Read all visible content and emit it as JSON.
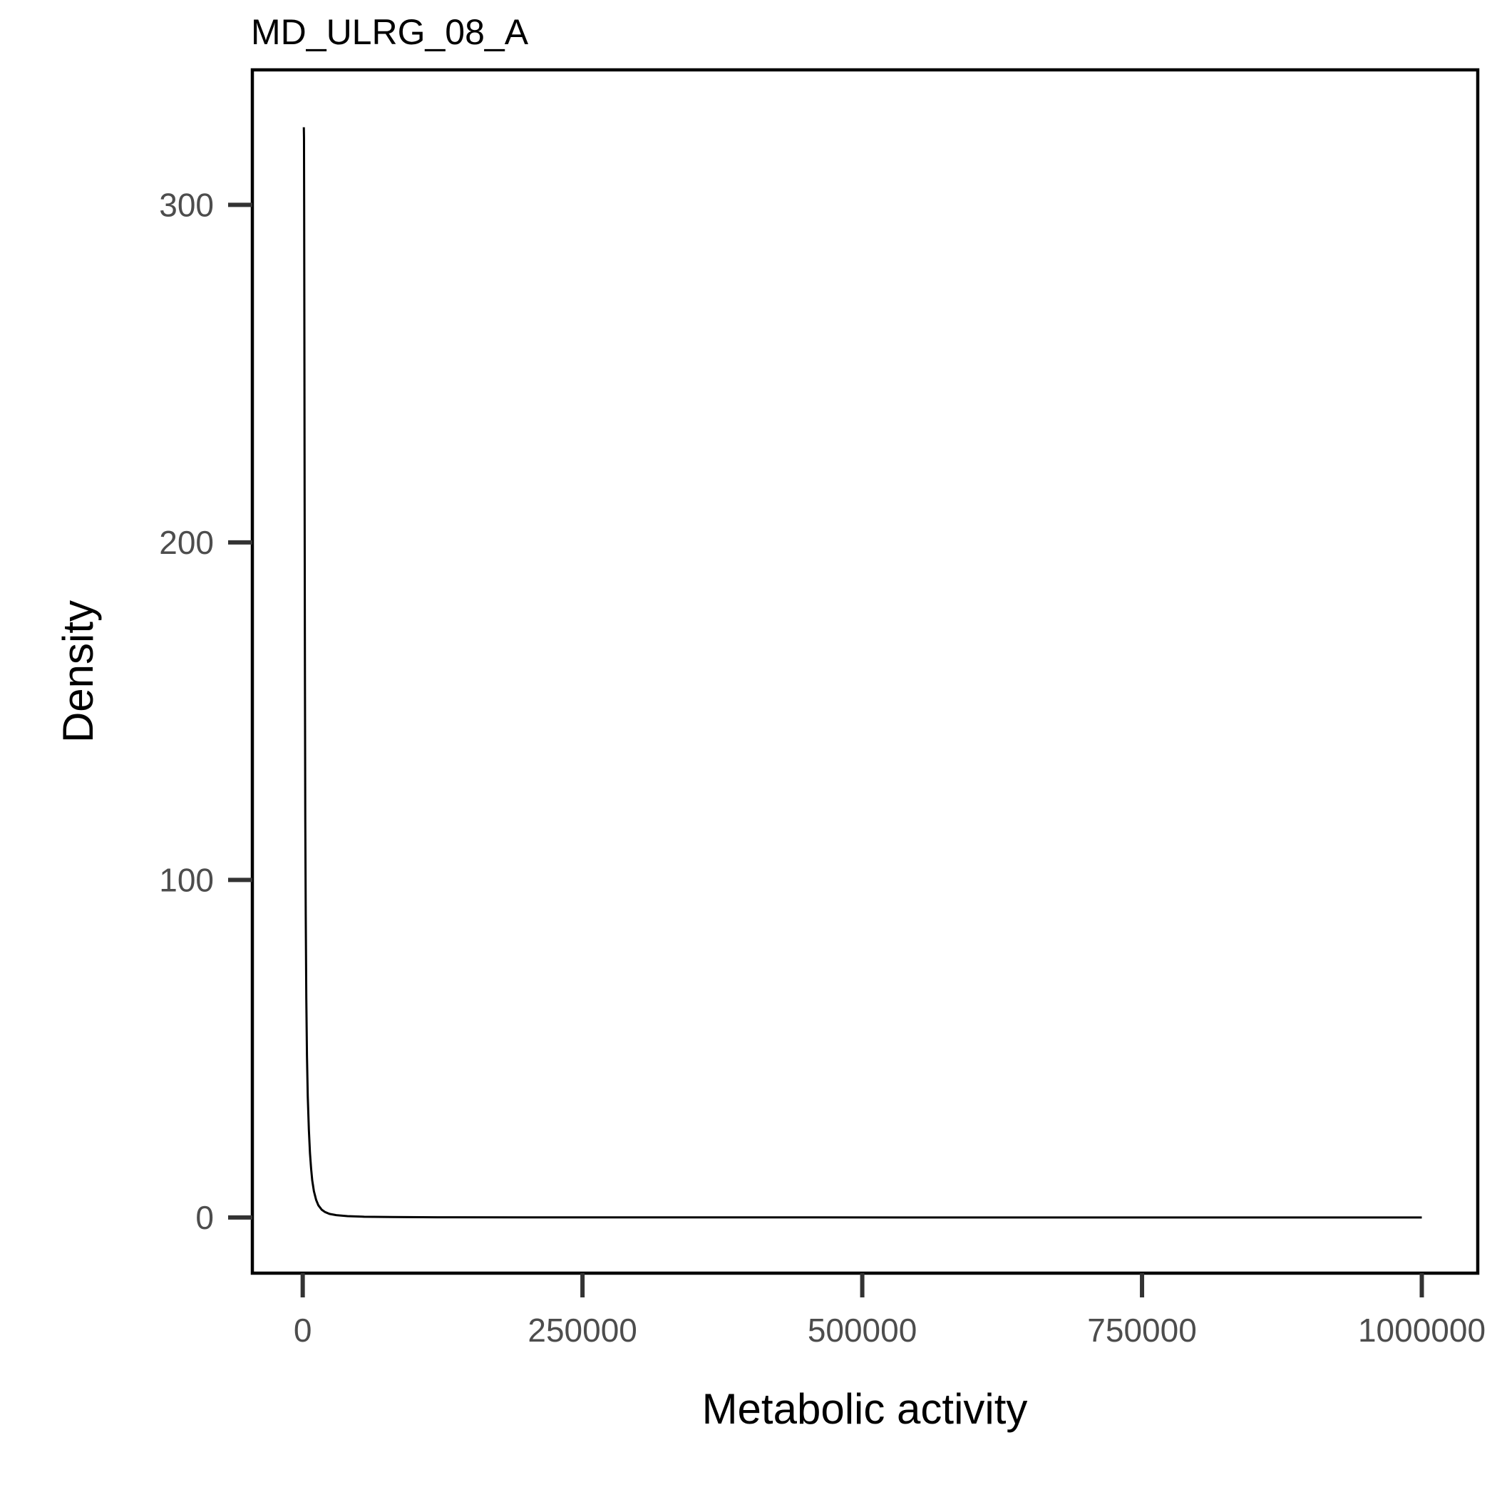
{
  "chart_data": {
    "type": "line",
    "title": "MD_ULRG_08_A",
    "xlabel": "Metabolic activity",
    "ylabel": "Density",
    "xlim": [
      -45000,
      1050000
    ],
    "ylim": [
      -16.5,
      340
    ],
    "x_ticks": [
      0,
      250000,
      500000,
      750000,
      1000000
    ],
    "x_tick_labels": [
      "0",
      "250000",
      "500000",
      "750000",
      "1000000"
    ],
    "y_ticks": [
      0,
      100,
      200,
      300
    ],
    "y_tick_labels": [
      "0",
      "100",
      "200",
      "300"
    ],
    "grid": false,
    "legend": "none",
    "series": [
      {
        "name": "density",
        "color": "#000000",
        "x": [
          1000,
          1150,
          1300,
          1500,
          1700,
          2000,
          2300,
          2700,
          3200,
          3800,
          4500,
          5500,
          6500,
          7500,
          8500,
          10000,
          12000,
          14000,
          17000,
          20000,
          24000,
          30000,
          40000,
          55000,
          80000,
          120000,
          200000,
          400000,
          700000,
          1000000
        ],
        "y": [
          323,
          320,
          300,
          260,
          215,
          160,
          118,
          90,
          65,
          48,
          36,
          26,
          19,
          14.5,
          11,
          7.8,
          5.2,
          3.6,
          2.3,
          1.6,
          1.05,
          0.68,
          0.4,
          0.22,
          0.12,
          0.06,
          0.03,
          0.015,
          0.008,
          0.005
        ]
      }
    ]
  }
}
